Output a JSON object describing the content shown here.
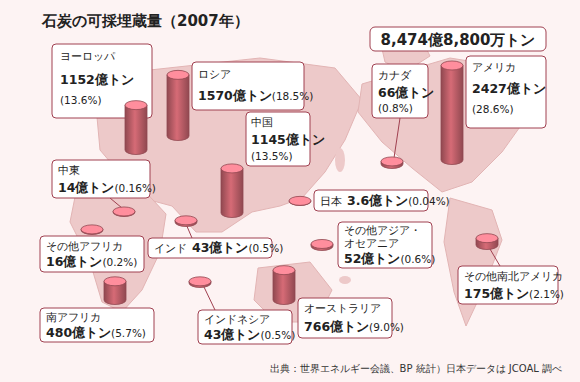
{
  "chart_data": {
    "type": "bar",
    "title": "石炭の可採埋蔵量（2007年）",
    "total": 8474.88,
    "total_label": "8,474億8,800万トン",
    "source": "出典：世界エネルギー会議、BP 統計）日本データは JCOAL 調べ",
    "categories": [
      "ヨーロッパ",
      "ロシア",
      "中国",
      "アメリカ",
      "カナダ",
      "中東",
      "その他アフリカ",
      "インド",
      "日本",
      "その他アジア・オセアニア",
      "南アフリカ",
      "インドネシア",
      "オーストラリア",
      "その他南北アメリカ"
    ],
    "values": [
      1152,
      1570,
      1145,
      2427,
      66,
      14,
      16,
      43,
      3.6,
      52,
      480,
      43,
      766,
      175
    ],
    "value_labels": [
      "1152億トン",
      "1570億トン",
      "1145億トン",
      "2427億トン",
      "66億トン",
      "14億トン",
      "16億トン",
      "43億トン",
      "3.6億トン",
      "52億トン",
      "480億トン",
      "43億トン",
      "766億トン",
      "175億トン"
    ],
    "shares": [
      13.6,
      18.5,
      13.5,
      28.6,
      0.8,
      0.16,
      0.2,
      0.5,
      0.04,
      0.6,
      5.7,
      0.5,
      9.0,
      2.1
    ],
    "share_labels": [
      "(13.6%)",
      "(18.5%)",
      "(13.5%)",
      "(28.6%)",
      "(0.8%)",
      "(0.16%)",
      "(0.2%)",
      "(0.5%)",
      "(0.04%)",
      "(0.6%)",
      "(5.7%)",
      "(0.5%)",
      "(9.0%)",
      "(2.1%)"
    ],
    "color": "#c0606a",
    "data_labels": true
  }
}
